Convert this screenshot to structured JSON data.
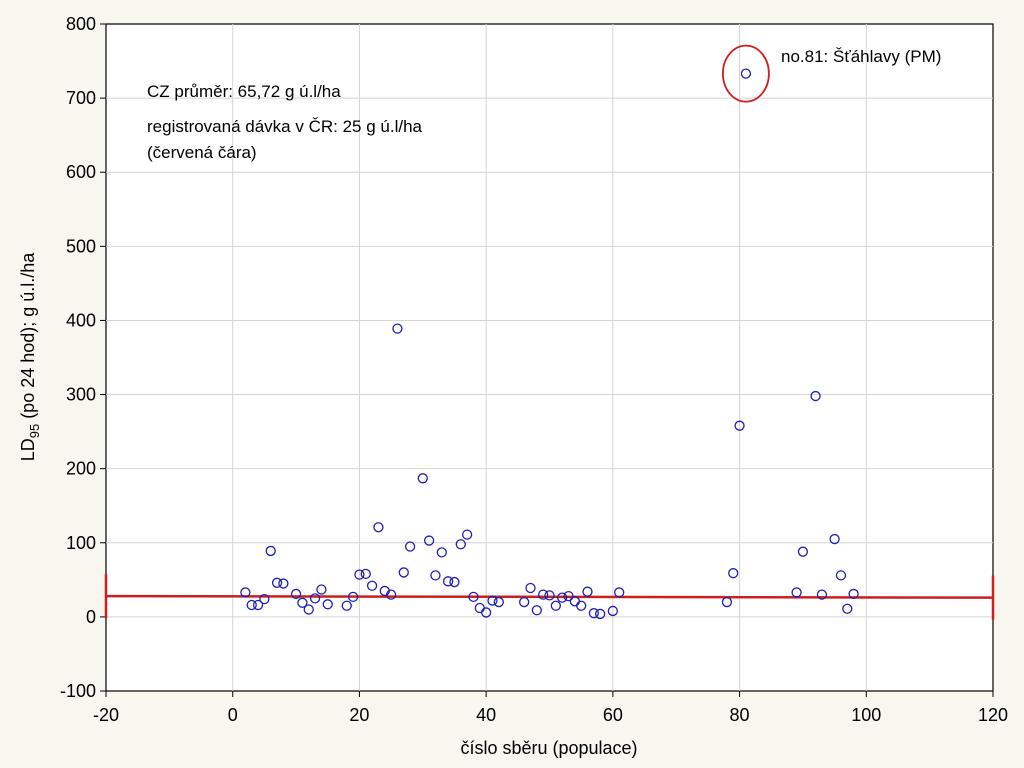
{
  "chart_data": {
    "type": "scatter",
    "xlabel": "číslo sběru (populace)",
    "ylabel": {
      "prefix": "LD",
      "subscript": "95",
      "suffix": " (po 24 hod); g ú.l./ha"
    },
    "xlim": [
      -20,
      120
    ],
    "ylim": [
      -100,
      800
    ],
    "x_ticks": [
      -20,
      0,
      20,
      40,
      60,
      80,
      100,
      120
    ],
    "y_ticks": [
      -100,
      0,
      100,
      200,
      300,
      400,
      500,
      600,
      700,
      800
    ],
    "grid": true,
    "marker": "open-circle",
    "series": [
      {
        "color": "#1f1fb5",
        "points": [
          [
            2,
            33
          ],
          [
            3,
            16
          ],
          [
            4,
            16
          ],
          [
            5,
            24
          ],
          [
            6,
            89
          ],
          [
            7,
            46
          ],
          [
            8,
            45
          ],
          [
            10,
            31
          ],
          [
            11,
            19
          ],
          [
            12,
            10
          ],
          [
            13,
            25
          ],
          [
            14,
            37
          ],
          [
            15,
            17
          ],
          [
            18,
            15
          ],
          [
            19,
            27
          ],
          [
            20,
            57
          ],
          [
            21,
            58
          ],
          [
            22,
            42
          ],
          [
            23,
            121
          ],
          [
            24,
            35
          ],
          [
            25,
            30
          ],
          [
            26,
            389
          ],
          [
            27,
            60
          ],
          [
            28,
            95
          ],
          [
            30,
            187
          ],
          [
            31,
            103
          ],
          [
            32,
            56
          ],
          [
            33,
            87
          ],
          [
            34,
            48
          ],
          [
            35,
            47
          ],
          [
            36,
            98
          ],
          [
            37,
            111
          ],
          [
            38,
            27
          ],
          [
            39,
            12
          ],
          [
            40,
            6
          ],
          [
            41,
            22
          ],
          [
            42,
            20
          ],
          [
            46,
            20
          ],
          [
            47,
            39
          ],
          [
            48,
            9
          ],
          [
            49,
            30
          ],
          [
            50,
            29
          ],
          [
            51,
            15
          ],
          [
            52,
            26
          ],
          [
            53,
            28
          ],
          [
            54,
            21
          ],
          [
            55,
            15
          ],
          [
            56,
            34
          ],
          [
            57,
            5
          ],
          [
            58,
            4
          ],
          [
            60,
            8
          ],
          [
            61,
            33
          ],
          [
            78,
            20
          ],
          [
            79,
            59
          ],
          [
            80,
            258
          ],
          [
            81,
            733
          ],
          [
            89,
            33
          ],
          [
            90,
            88
          ],
          [
            92,
            298
          ],
          [
            93,
            30
          ],
          [
            95,
            105
          ],
          [
            96,
            56
          ],
          [
            97,
            11
          ],
          [
            98,
            31
          ]
        ]
      }
    ],
    "reference_line": {
      "y_start": 28,
      "y_end": 26,
      "color": "#cc1f1f"
    },
    "highlight": {
      "x": 81,
      "y": 733,
      "color": "#cc1f1f"
    },
    "annotations": {
      "mean": "CZ průměr: 65,72 g ú.l/ha",
      "dose_line1": "registrovaná dávka v ČR: 25 g ú.l/ha",
      "dose_line2": "(červená čára)",
      "outlier": "no.81: Šťáhlavy (PM)"
    }
  }
}
